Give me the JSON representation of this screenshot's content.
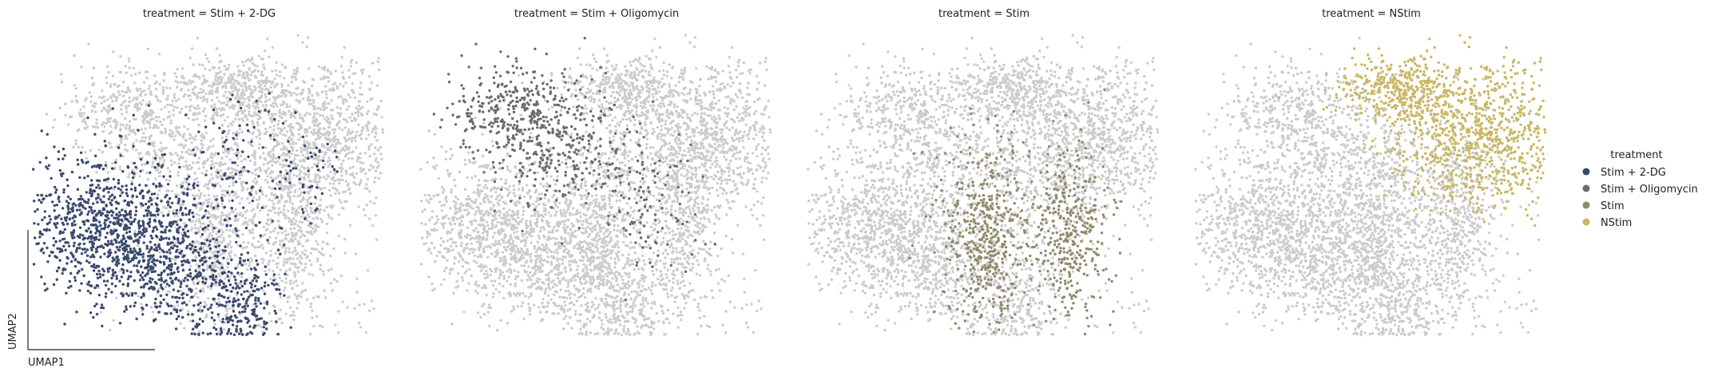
{
  "chart_data": {
    "type": "scatter",
    "panel_titles": [
      "treatment = Stim + 2-DG",
      "treatment = Stim + Oligomycin",
      "treatment = Stim",
      "treatment = NStim"
    ],
    "xlabel": "UMAP1",
    "ylabel": "UMAP2",
    "legend": {
      "title": "treatment",
      "placement": "right",
      "entries": [
        {
          "name": "Stim + 2-DG",
          "color": "#3a4a6e"
        },
        {
          "name": "Stim + Oligomycin",
          "color": "#6b6b6b"
        },
        {
          "name": "Stim",
          "color": "#8f8a6a"
        },
        {
          "name": "NStim",
          "color": "#c9b765"
        }
      ]
    },
    "background_color": "#cccccc",
    "grid": false,
    "highlight_series_per_panel": [
      "Stim + 2-DG",
      "Stim + Oligomycin",
      "Stim",
      "NStim"
    ]
  }
}
